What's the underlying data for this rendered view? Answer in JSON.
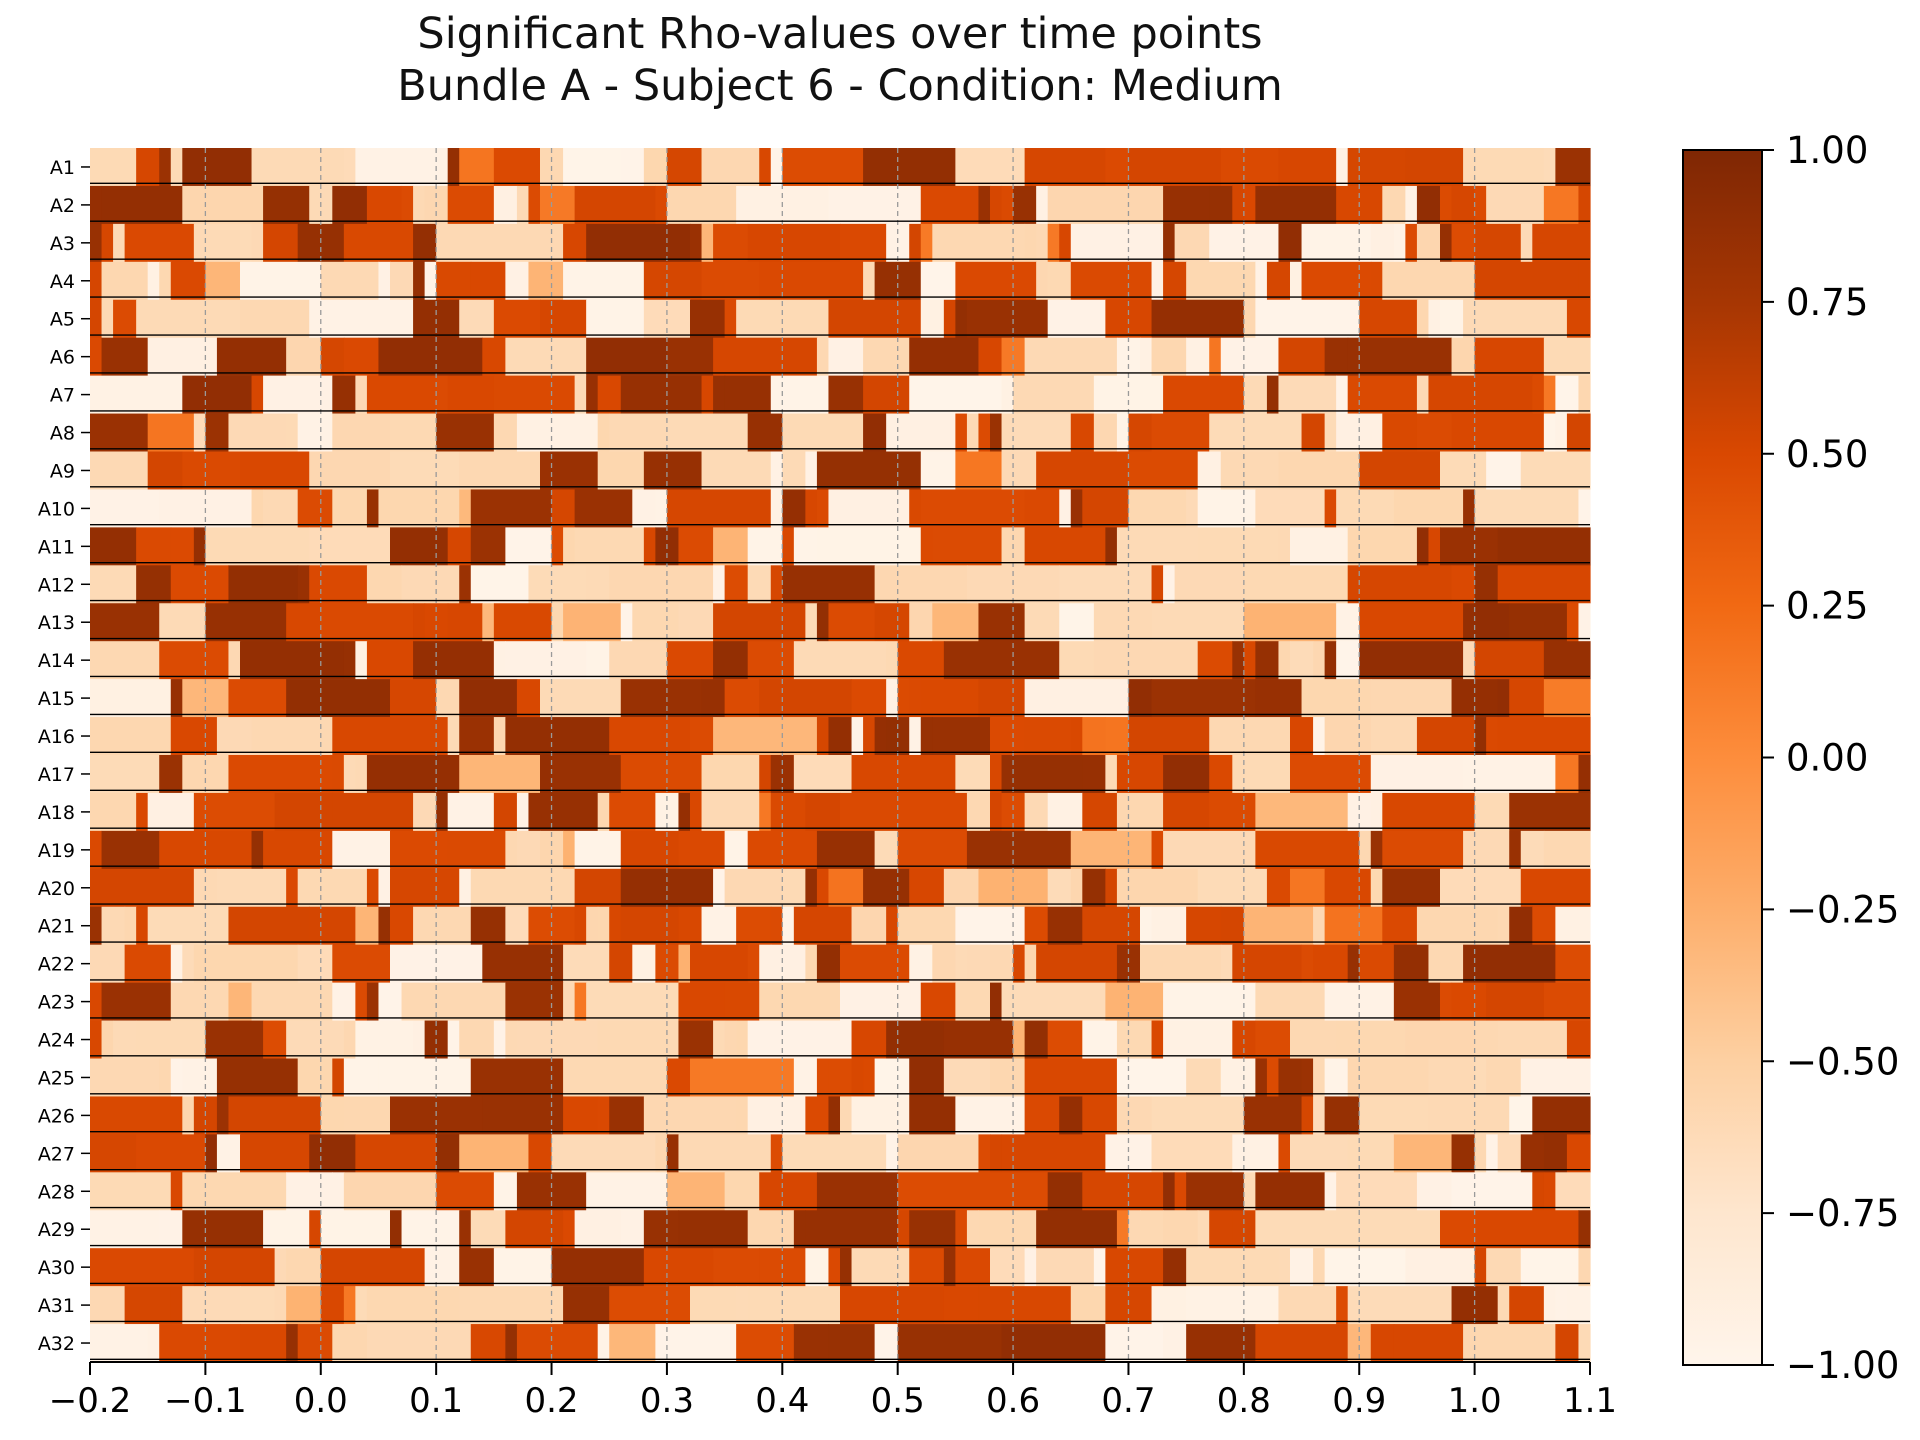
{
  "chart_data": {
    "type": "heatmap",
    "title": "Significant Rho-values over time points",
    "subtitle": "Bundle A - Subject 6 - Condition: Medium",
    "xlabel": "",
    "ylabel": "",
    "xlim": [
      -0.2,
      1.1
    ],
    "x_ticks": [
      "−0.2",
      "−0.1",
      "0.0",
      "0.1",
      "0.2",
      "0.3",
      "0.4",
      "0.5",
      "0.6",
      "0.7",
      "0.8",
      "0.9",
      "1.0",
      "1.1"
    ],
    "x_tick_values": [
      -0.2,
      -0.1,
      0.0,
      0.1,
      0.2,
      0.3,
      0.4,
      0.5,
      0.6,
      0.7,
      0.8,
      0.9,
      1.0,
      1.1
    ],
    "rows": [
      "A1",
      "A2",
      "A3",
      "A4",
      "A5",
      "A6",
      "A7",
      "A8",
      "A9",
      "A10",
      "A11",
      "A12",
      "A13",
      "A14",
      "A15",
      "A16",
      "A17",
      "A18",
      "A19",
      "A20",
      "A21",
      "A22",
      "A23",
      "A24",
      "A25",
      "A26",
      "A27",
      "A28",
      "A29",
      "A30",
      "A31",
      "A32"
    ],
    "x_bin_count": 130,
    "colormap": "Oranges",
    "colormap_stops": [
      "#fff5eb",
      "#fee6ce",
      "#fdd0a2",
      "#fdae6b",
      "#fd8d3c",
      "#f16913",
      "#d94801",
      "#a63603",
      "#7f2704"
    ],
    "colorbar": {
      "range": [
        -1.0,
        1.0
      ],
      "ticks": [
        "1.00",
        "0.75",
        "0.50",
        "0.25",
        "0.00",
        "−0.25",
        "−0.50",
        "−0.75",
        "−1.00"
      ],
      "tick_values": [
        1.0,
        0.75,
        0.5,
        0.25,
        0.0,
        -0.25,
        -0.5,
        -0.75,
        -1.0
      ]
    },
    "value_levels": [
      -0.95,
      -0.6,
      0.5,
      0.85
    ],
    "value_level_probabilities": [
      0.2,
      0.3,
      0.32,
      0.18
    ],
    "significant_value_levels": [
      -0.3,
      0.15
    ],
    "row_strength": [
      0.55,
      0.65,
      0.55,
      0.5,
      0.62,
      0.62,
      0.58,
      0.62,
      0.58,
      0.6,
      0.68,
      0.62,
      0.7,
      0.7,
      0.7,
      0.68,
      0.7,
      0.66,
      0.45,
      0.5,
      0.58,
      0.56,
      0.5,
      0.6,
      0.5,
      0.56,
      0.56,
      0.56,
      0.55,
      0.52,
      0.56,
      0.55
    ],
    "grid": true,
    "grid_style": "vertical dashed gray lines at x ticks",
    "row_separators": true,
    "legend": "colorbar-right"
  }
}
